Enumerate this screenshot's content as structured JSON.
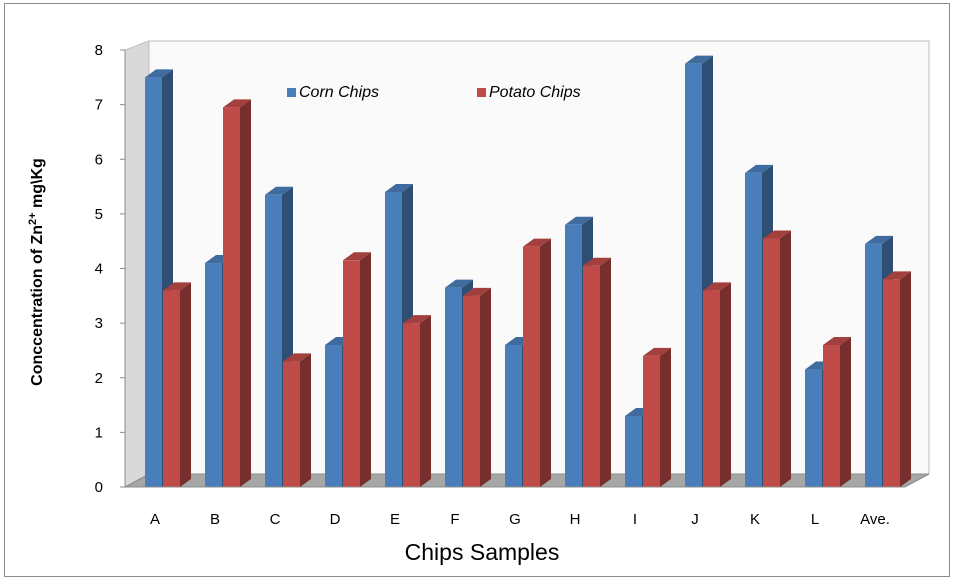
{
  "chart_data": {
    "type": "bar",
    "title": "",
    "xlabel": "Chips Samples",
    "ylabel": "Conccentration of Zn",
    "ylabel_sup": "2+",
    "ylabel_unit": " mg\\Kg",
    "categories": [
      "A",
      "B",
      "C",
      "D",
      "E",
      "F",
      "G",
      "H",
      "I",
      "J",
      "K",
      "L",
      "Ave."
    ],
    "series": [
      {
        "name": "Corn Chips",
        "color": "#4a7ebb",
        "values": [
          7.5,
          4.1,
          5.35,
          2.6,
          5.4,
          3.65,
          2.6,
          4.8,
          1.3,
          7.75,
          5.75,
          2.15,
          4.45
        ]
      },
      {
        "name": "Potato Chips",
        "color": "#be4b48",
        "values": [
          3.6,
          6.95,
          2.3,
          4.15,
          3.0,
          3.5,
          4.4,
          4.05,
          2.4,
          3.6,
          4.55,
          2.6,
          3.8
        ]
      }
    ],
    "ylim": [
      0,
      8
    ],
    "yticks": [
      "0",
      "1",
      "2",
      "3",
      "4",
      "5",
      "6",
      "7",
      "8"
    ],
    "grid": false,
    "style": "3d-column",
    "legend": "top-left inside"
  }
}
